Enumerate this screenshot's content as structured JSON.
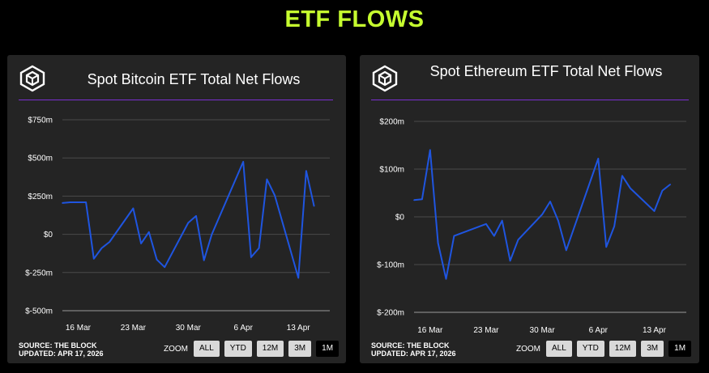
{
  "header": {
    "title": "ETF FLOWS"
  },
  "panels": [
    {
      "id": "btc",
      "title": "Spot Bitcoin ETF Total Net Flows",
      "footer": {
        "source": "SOURCE: THE BLOCK",
        "updated": "UPDATED: APR 17, 2026"
      },
      "zoom": {
        "label": "ZOOM",
        "options": [
          "ALL",
          "YTD",
          "12M",
          "3M",
          "1M"
        ],
        "selected": "1M"
      }
    },
    {
      "id": "eth",
      "title": "Spot Ethereum ETF Total Net Flows",
      "footer": {
        "source": "SOURCE: THE BLOCK",
        "updated": "UPDATED: APR 17, 2026"
      },
      "zoom": {
        "label": "ZOOM",
        "options": [
          "ALL",
          "YTD",
          "12M",
          "3M",
          "1M"
        ],
        "selected": "1M"
      }
    }
  ],
  "colors": {
    "title": "#c6ff2f",
    "line": "#1f55e0",
    "divider": "#7b2fd1",
    "panel": "#242424",
    "grid": "#4a4a4a"
  },
  "icons": {
    "logo": "the-block-cube-icon"
  },
  "chart_data": [
    {
      "type": "line",
      "title": "Spot Bitcoin ETF Total Net Flows",
      "x_tick_labels": [
        "16 Mar",
        "23 Mar",
        "30 Mar",
        "6 Apr",
        "13 Apr"
      ],
      "y_tick_labels": [
        "$750m",
        "$500m",
        "$250m",
        "$0",
        "$-250m",
        "$-500m"
      ],
      "y_ticks": [
        750,
        500,
        250,
        0,
        -250,
        -500
      ],
      "ylim": [
        -500,
        750
      ],
      "xlim": [
        "2026-03-14",
        "2026-04-17"
      ],
      "grid": true,
      "series": [
        {
          "x": [
            "2026-03-14",
            "2026-03-15",
            "2026-03-17",
            "2026-03-18",
            "2026-03-19",
            "2026-03-20",
            "2026-03-23",
            "2026-03-24",
            "2026-03-25",
            "2026-03-26",
            "2026-03-27",
            "2026-03-30",
            "2026-03-31",
            "2026-04-01",
            "2026-04-02",
            "2026-04-06",
            "2026-04-07",
            "2026-04-08",
            "2026-04-09",
            "2026-04-10",
            "2026-04-13",
            "2026-04-14",
            "2026-04-15"
          ],
          "values": [
            205,
            210,
            210,
            -160,
            -90,
            -50,
            170,
            -60,
            15,
            -165,
            -215,
            75,
            120,
            -170,
            0,
            475,
            -150,
            -90,
            360,
            255,
            -285,
            415,
            185
          ]
        }
      ]
    },
    {
      "type": "line",
      "title": "Spot Ethereum ETF Total Net Flows",
      "x_tick_labels": [
        "16 Mar",
        "23 Mar",
        "30 Mar",
        "6 Apr",
        "13 Apr"
      ],
      "y_tick_labels": [
        "$200m",
        "$100m",
        "$0",
        "$-100m",
        "$-200m"
      ],
      "y_ticks": [
        200,
        100,
        0,
        -100,
        -200
      ],
      "ylim": [
        -200,
        200
      ],
      "xlim": [
        "2026-03-14",
        "2026-04-17"
      ],
      "grid": true,
      "series": [
        {
          "x": [
            "2026-03-14",
            "2026-03-15",
            "2026-03-16",
            "2026-03-17",
            "2026-03-18",
            "2026-03-19",
            "2026-03-23",
            "2026-03-24",
            "2026-03-25",
            "2026-03-26",
            "2026-03-27",
            "2026-03-30",
            "2026-03-31",
            "2026-04-01",
            "2026-04-02",
            "2026-04-06",
            "2026-04-07",
            "2026-04-08",
            "2026-04-09",
            "2026-04-10",
            "2026-04-13",
            "2026-04-14",
            "2026-04-15"
          ],
          "values": [
            35,
            37,
            140,
            -55,
            -130,
            -40,
            -15,
            -40,
            -8,
            -92,
            -48,
            5,
            32,
            -8,
            -70,
            122,
            -63,
            -20,
            86,
            60,
            12,
            55,
            68
          ]
        }
      ]
    }
  ]
}
